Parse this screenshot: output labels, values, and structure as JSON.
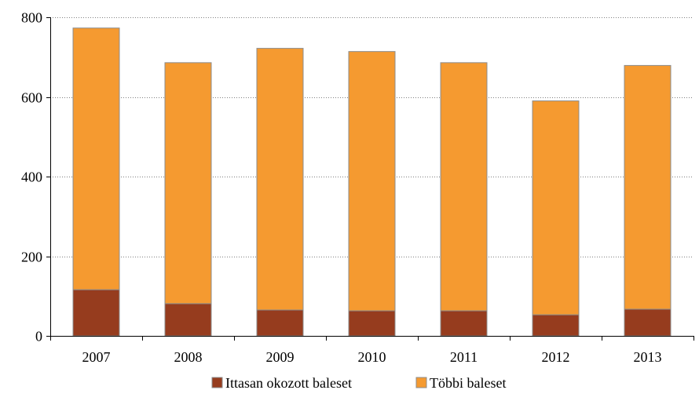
{
  "chart_data": {
    "type": "bar",
    "stacked": true,
    "categories": [
      "2007",
      "2008",
      "2009",
      "2010",
      "2011",
      "2012",
      "2013"
    ],
    "series": [
      {
        "name": "Ittasan okozott baleset",
        "color": "#963c1e",
        "values": [
          116,
          81,
          65,
          63,
          63,
          53,
          67
        ]
      },
      {
        "name": "Többi baleset",
        "color": "#f59a30",
        "values": [
          657,
          605,
          657,
          651,
          623,
          537,
          612
        ]
      }
    ],
    "ylim": [
      0,
      800
    ],
    "yticks": [
      "0",
      "200",
      "400",
      "600",
      "800"
    ],
    "ytick_values": [
      0,
      200,
      400,
      600,
      800
    ],
    "grid": true,
    "legend_position": "bottom",
    "title": "",
    "xlabel": "",
    "ylabel": ""
  }
}
